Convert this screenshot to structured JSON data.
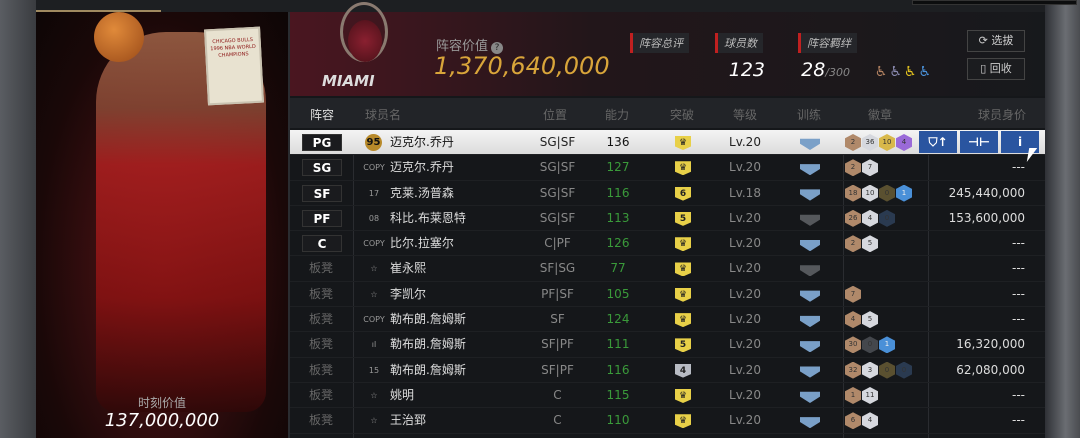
{
  "player_card": {
    "moment_value_label": "时刻价值",
    "moment_value": "137,000,000",
    "card_text": "CHICAGO BULLS 1996 NBA WORLD CHAMPIONS"
  },
  "header": {
    "team_logo_text": "MIAMI",
    "lineup_value_label": "阵容价值",
    "lineup_value": "1,370,640,000",
    "rating_label": "阵容总评",
    "rating": "123",
    "players_label": "球员数",
    "players": "28",
    "players_max": "/300",
    "bonds_label": "阵容羁绊",
    "bond_colors": [
      "#b08060",
      "#8a8ab0",
      "#e0c020",
      "#4a90d8"
    ],
    "select_button": "选拔",
    "recycle_button": "回收"
  },
  "columns": [
    "阵容",
    "球员名",
    "位置",
    "能力",
    "突破",
    "等级",
    "训练",
    "徽章",
    "球员身价"
  ],
  "rows": [
    {
      "slot": "PG",
      "icon": "95",
      "name": "迈克尔.乔丹",
      "pos": "SG|SF",
      "ability": "136",
      "break": "crown",
      "level": "Lv.20",
      "train": true,
      "badges": [
        [
          "b",
          "2"
        ],
        [
          "s",
          "36"
        ],
        [
          "g",
          "10"
        ],
        [
          "p",
          "4"
        ]
      ],
      "value": "",
      "selected": true
    },
    {
      "slot": "SG",
      "icon": "COPY",
      "name": "迈克尔.乔丹",
      "pos": "SG|SF",
      "ability": "127",
      "break": "crown",
      "level": "Lv.20",
      "train": true,
      "badges": [
        [
          "b",
          "2"
        ],
        [
          "s",
          "7"
        ]
      ],
      "value": "---"
    },
    {
      "slot": "SF",
      "icon": "17",
      "name": "克莱.汤普森",
      "pos": "SG|SF",
      "ability": "116",
      "break": "6",
      "level": "Lv.18",
      "train": true,
      "badges": [
        [
          "b",
          "18"
        ],
        [
          "s",
          "10"
        ],
        [
          "dg",
          "0"
        ],
        [
          "bl",
          "1"
        ]
      ],
      "value": "245,440,000"
    },
    {
      "slot": "PF",
      "icon": "08",
      "name": "科比.布莱恩特",
      "pos": "SG|SF",
      "ability": "113",
      "break": "5",
      "level": "Lv.20",
      "train": false,
      "badges": [
        [
          "b",
          "26"
        ],
        [
          "s",
          "4"
        ],
        [
          "db",
          "0"
        ]
      ],
      "value": "153,600,000"
    },
    {
      "slot": "C",
      "icon": "COPY",
      "name": "比尔.拉塞尔",
      "pos": "C|PF",
      "ability": "126",
      "break": "crown",
      "level": "Lv.20",
      "train": true,
      "badges": [
        [
          "b",
          "2"
        ],
        [
          "s",
          "5"
        ]
      ],
      "value": "---"
    },
    {
      "slot": "板凳",
      "icon": "☆",
      "name": "崔永熙",
      "pos": "SF|SG",
      "ability": "77",
      "break": "crown",
      "level": "Lv.20",
      "train": false,
      "badges": [],
      "value": "---"
    },
    {
      "slot": "板凳",
      "icon": "☆",
      "name": "李凯尔",
      "pos": "PF|SF",
      "ability": "105",
      "break": "crown",
      "level": "Lv.20",
      "train": true,
      "badges": [
        [
          "b",
          "7"
        ]
      ],
      "value": "---"
    },
    {
      "slot": "板凳",
      "icon": "COPY",
      "name": "勒布朗.詹姆斯",
      "pos": "SF",
      "ability": "124",
      "break": "crown",
      "level": "Lv.20",
      "train": true,
      "badges": [
        [
          "b",
          "4"
        ],
        [
          "s",
          "5"
        ]
      ],
      "value": "---"
    },
    {
      "slot": "板凳",
      "icon": "ıl",
      "name": "勒布朗.詹姆斯",
      "pos": "SF|PF",
      "ability": "111",
      "break": "5",
      "level": "Lv.20",
      "train": true,
      "badges": [
        [
          "b",
          "30"
        ],
        [
          "ds",
          "0"
        ],
        [
          "bl",
          "1"
        ]
      ],
      "value": "16,320,000"
    },
    {
      "slot": "板凳",
      "icon": "15",
      "name": "勒布朗.詹姆斯",
      "pos": "SF|PF",
      "ability": "116",
      "break": "4s",
      "level": "Lv.20",
      "train": true,
      "badges": [
        [
          "b",
          "32"
        ],
        [
          "s",
          "3"
        ],
        [
          "dg",
          "0"
        ],
        [
          "db",
          "0"
        ]
      ],
      "value": "62,080,000"
    },
    {
      "slot": "板凳",
      "icon": "☆",
      "name": "姚明",
      "pos": "C",
      "ability": "115",
      "break": "crown",
      "level": "Lv.20",
      "train": true,
      "badges": [
        [
          "b",
          "1"
        ],
        [
          "s",
          "11"
        ]
      ],
      "value": "---"
    },
    {
      "slot": "板凳",
      "icon": "☆",
      "name": "王治郅",
      "pos": "C",
      "ability": "110",
      "break": "crown",
      "level": "Lv.20",
      "train": true,
      "badges": [
        [
          "b",
          "6"
        ],
        [
          "s",
          "4"
        ]
      ],
      "value": "---"
    }
  ],
  "row_actions": [
    "upgrade-icon",
    "training-icon",
    "info-icon"
  ]
}
